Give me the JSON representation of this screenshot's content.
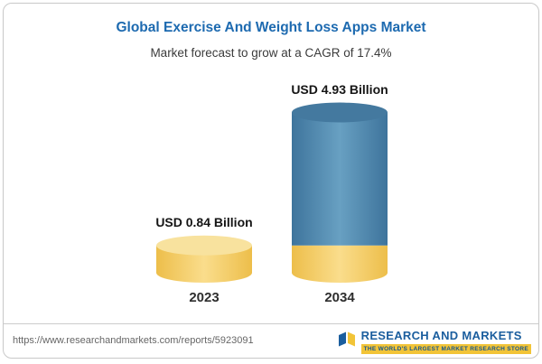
{
  "chart_data": {
    "type": "bar",
    "title": "Global Exercise And Weight Loss Apps Market",
    "subtitle": "Market forecast to grow at a CAGR of 17.4%",
    "cagr": "17.4%",
    "unit": "USD Billion",
    "categories": [
      "2023",
      "2034"
    ],
    "values": [
      0.84,
      4.93
    ],
    "bars": [
      {
        "category": "2023",
        "value": 0.84,
        "label": "USD 0.84 Billion",
        "segments": [
          {
            "value": 0.84,
            "color": "gold"
          }
        ]
      },
      {
        "category": "2034",
        "value": 4.93,
        "label": "USD 4.93 Billion",
        "segments": [
          {
            "value": 0.84,
            "color": "gold"
          },
          {
            "value": 4.09,
            "color": "blue"
          }
        ]
      }
    ],
    "colors": {
      "gold": "#F5CE63",
      "blue": "#4E86AC",
      "title_blue": "#1D6AB0"
    },
    "legend": "none",
    "ylim": [
      0,
      5.5
    ]
  },
  "footer": {
    "url": "https://www.researchandmarkets.com/reports/5923091",
    "brand": "RESEARCH AND MARKETS",
    "tagline": "THE WORLD'S LARGEST MARKET RESEARCH STORE"
  }
}
